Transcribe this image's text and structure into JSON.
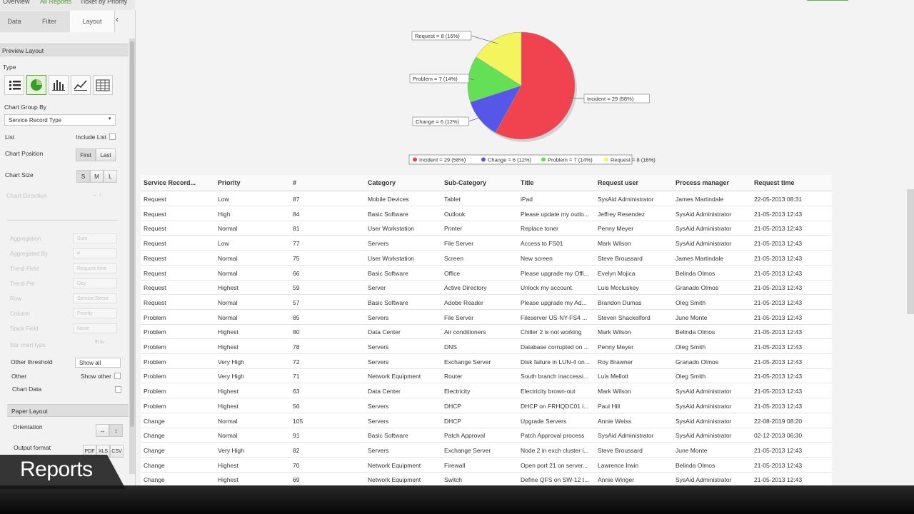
{
  "breadcrumb": [
    "Overview",
    "All Reports",
    "Ticket by Priority"
  ],
  "sidebar": {
    "tabs": [
      "Data",
      "Filter",
      "Layout"
    ],
    "preview_title": "Preview Layout",
    "type_label": "Type",
    "group_by_label": "Chart Group By",
    "group_by_value": "Service Record Type",
    "list_label": "List",
    "include_list": "Include List",
    "position_label": "Chart Position",
    "position_options": [
      "First",
      "Last"
    ],
    "size_label": "Chart Size",
    "size_options": [
      "S",
      "M",
      "L"
    ],
    "direction_label": "Chart Direction",
    "disabled_fields": [
      {
        "label": "Aggregation",
        "value": "Sum"
      },
      {
        "label": "Aggregated By",
        "value": "#"
      },
      {
        "label": "Trend Field",
        "value": "Request time"
      },
      {
        "label": "Trend Per",
        "value": "Day"
      },
      {
        "label": "Row",
        "value": "Service Recor"
      },
      {
        "label": "Column",
        "value": "Priority"
      },
      {
        "label": "Stack Field",
        "value": "None"
      },
      {
        "label": "Bar chart type"
      }
    ],
    "threshold_label": "Other threshold",
    "threshold_value": "Show all",
    "other_label": "Other",
    "show_other": "Show other",
    "chart_data_label": "Chart Data",
    "paper_title": "Paper Layout",
    "orientation_label": "Orientation",
    "output_label": "Output format",
    "output_options": [
      "PDF",
      "XLS",
      "CSV"
    ]
  },
  "caption": "Reports",
  "chart": {
    "type": "pie",
    "slices": [
      {
        "label": "Incident = 29 (58%)",
        "value": 29,
        "color": "#f0434f"
      },
      {
        "label": "Change = 6 (12%)",
        "value": 6,
        "color": "#5656e8"
      },
      {
        "label": "Problem = 7 (14%)",
        "value": 7,
        "color": "#63e055"
      },
      {
        "label": "Request = 8 (16%)",
        "value": 8,
        "color": "#f4f45e"
      }
    ]
  },
  "table": {
    "columns": [
      "Service Record...",
      "Priority",
      "#",
      "Category",
      "Sub-Category",
      "Title",
      "Request user",
      "Process manager",
      "Request time"
    ],
    "rows": [
      [
        "Request",
        "Low",
        87,
        "Mobile Devices",
        "Tablet",
        "iPad",
        "SysAid Administrator",
        "James Martindale",
        "22-05-2013 08:31"
      ],
      [
        "Request",
        "High",
        84,
        "Basic Software",
        "Outlook",
        "Please update my outlo...",
        "Jeffrey Resendez",
        "SysAid Administrator",
        "21-05-2013 12:43"
      ],
      [
        "Request",
        "Normal",
        81,
        "User Workstation",
        "Printer",
        "Replace toner",
        "Penny Meyer",
        "SysAid Administrator",
        "21-05-2013 12:43"
      ],
      [
        "Request",
        "Low",
        77,
        "Servers",
        "File Server",
        "Access to FS01",
        "Mark Wilson",
        "SysAid Administrator",
        "21-05-2013 12:43"
      ],
      [
        "Request",
        "Normal",
        75,
        "User Workstation",
        "Screen",
        "New screen",
        "Steve Broussard",
        "James Martindale",
        "21-05-2013 12:43"
      ],
      [
        "Request",
        "Normal",
        66,
        "Basic Software",
        "Office",
        "Please upgrade my Offi...",
        "Evelyn Mojica",
        "Belinda Olmos",
        "21-05-2013 12:43"
      ],
      [
        "Request",
        "Highest",
        59,
        "Server",
        "Active Directory",
        "Unlock my account.",
        "Luis Mccluskey",
        "Granado Olmos",
        "21-05-2013 12:43"
      ],
      [
        "Request",
        "Normal",
        57,
        "Basic Software",
        "Adobe Reader",
        "Please upgrade my Ad...",
        "Brandon Dumas",
        "Oleg Smith",
        "21-05-2013 12:43"
      ],
      [
        "Problem",
        "Normal",
        85,
        "Servers",
        "File Server",
        "Fileserver US-NY-FS4 ...",
        "Steven Shackelford",
        "June Monte",
        "21-05-2013 12:43"
      ],
      [
        "Problem",
        "Highest",
        80,
        "Data Center",
        "Air conditioners",
        "Chiller 2 is not working",
        "Mark Wilson",
        "Belinda Olmos",
        "21-05-2013 12:43"
      ],
      [
        "Problem",
        "Highest",
        78,
        "Servers",
        "DNS",
        "Database corrupted on ...",
        "Penny Meyer",
        "Oleg Smith",
        "21-05-2013 12:43"
      ],
      [
        "Problem",
        "Very High",
        72,
        "Servers",
        "Exchange Server",
        "Disk failure in LUN-4 on...",
        "Roy Brawner",
        "Granado Olmos",
        "21-05-2013 12:43"
      ],
      [
        "Problem",
        "Very High",
        71,
        "Network Equipment",
        "Router",
        "South branch inaccessi...",
        "Luis Mellott",
        "Oleg Smith",
        "21-05-2013 12:43"
      ],
      [
        "Problem",
        "Highest",
        63,
        "Data Center",
        "Electricity",
        "Electricity brown-out",
        "Mark Wilson",
        "SysAid Administrator",
        "21-05-2013 12:43"
      ],
      [
        "Problem",
        "Highest",
        56,
        "Servers",
        "DHCP",
        "DHCP on FRHQDC01 i...",
        "Paul Hill",
        "SysAid Administrator",
        "21-05-2013 12:43"
      ],
      [
        "Change",
        "Normal",
        105,
        "Servers",
        "DHCP",
        "Upgrade Servers",
        "Annie Weiss",
        "SysAid Administrator",
        "22-08-2019 08:20"
      ],
      [
        "Change",
        "Normal",
        91,
        "Basic Software",
        "Patch Approval",
        "Patch Approval process",
        "SysAid Administrator",
        "SysAid Administrator",
        "02-12-2013 06:30"
      ],
      [
        "Change",
        "Very High",
        82,
        "Servers",
        "Exchange Server",
        "Node 2 in exch cluster i...",
        "Steve Broussard",
        "June Monte",
        "21-05-2013 12:43"
      ],
      [
        "Change",
        "Highest",
        70,
        "Network Equipment",
        "Firewall",
        "Open port 21 on server...",
        "Lawrence Irwin",
        "Belinda Olmos",
        "21-05-2013 12:43"
      ],
      [
        "Change",
        "Highest",
        69,
        "Network Equipment",
        "Switch",
        "Define QFS on SW-12 t...",
        "Annie Winger",
        "SysAid Administrator",
        "21-05-2013 12:43"
      ]
    ]
  }
}
